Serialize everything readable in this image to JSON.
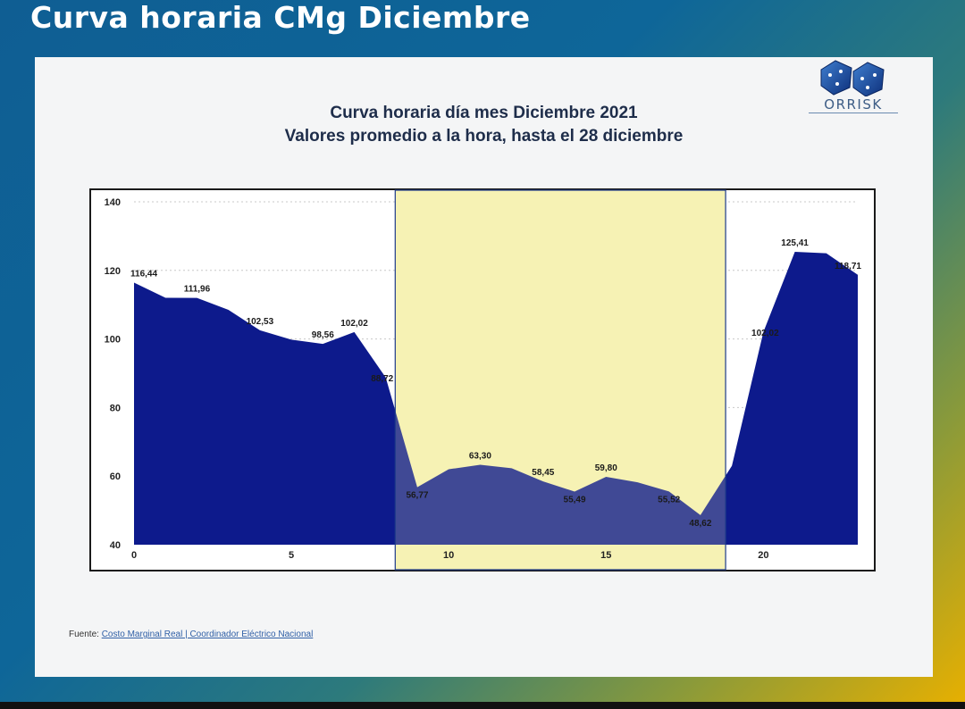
{
  "slide": {
    "title": "Curva horaria CMg Diciembre"
  },
  "logo": {
    "text": "ORRISK"
  },
  "chart_data": {
    "type": "area",
    "title": "Curva horaria día mes Diciembre 2021",
    "subtitle": "Valores promedio a la hora, hasta el 28 diciembre",
    "xlabel": "",
    "ylabel": "",
    "x": [
      0,
      1,
      2,
      3,
      4,
      5,
      6,
      7,
      8,
      9,
      10,
      11,
      12,
      13,
      14,
      15,
      16,
      17,
      18,
      19,
      20,
      21,
      22,
      23
    ],
    "values": [
      116.44,
      112.0,
      111.96,
      108.5,
      102.53,
      99.8,
      98.56,
      102.02,
      88.72,
      56.77,
      62.0,
      63.3,
      62.3,
      58.45,
      55.49,
      59.8,
      58.2,
      55.52,
      48.62,
      63.0,
      102.02,
      125.41,
      125.0,
      118.71
    ],
    "data_labels": [
      {
        "x": 0,
        "text": "116,44"
      },
      {
        "x": 2,
        "text": "111,96"
      },
      {
        "x": 4,
        "text": "102,53"
      },
      {
        "x": 6,
        "text": "98,56"
      },
      {
        "x": 7,
        "text": "102,02"
      },
      {
        "x": 8,
        "text": "88,72"
      },
      {
        "x": 9,
        "text": "56,77"
      },
      {
        "x": 11,
        "text": "63,30"
      },
      {
        "x": 13,
        "text": "58,45"
      },
      {
        "x": 14,
        "text": "55,49"
      },
      {
        "x": 15,
        "text": "59,80"
      },
      {
        "x": 17,
        "text": "55,52"
      },
      {
        "x": 18,
        "text": "48,62"
      },
      {
        "x": 20,
        "text": "102,02"
      },
      {
        "x": 21,
        "text": "125,41"
      },
      {
        "x": 23,
        "text": "118,71"
      }
    ],
    "x_ticks": [
      0,
      5,
      10,
      15,
      20
    ],
    "y_ticks": [
      40,
      60,
      80,
      100,
      120,
      140
    ],
    "xlim": [
      0,
      23
    ],
    "ylim": [
      40,
      140
    ],
    "highlight_range": [
      8.3,
      18.8
    ],
    "grid": true,
    "legend": "none",
    "colors": {
      "area": "#0d1a8c",
      "highlight": "#f6f3b4",
      "highlight_border": "#1d3a8a",
      "frame": "#1a1a1a"
    }
  },
  "source": {
    "prefix": "Fuente: ",
    "link": "Costo Marginal Real | Coordinador Eléctrico Nacional"
  }
}
